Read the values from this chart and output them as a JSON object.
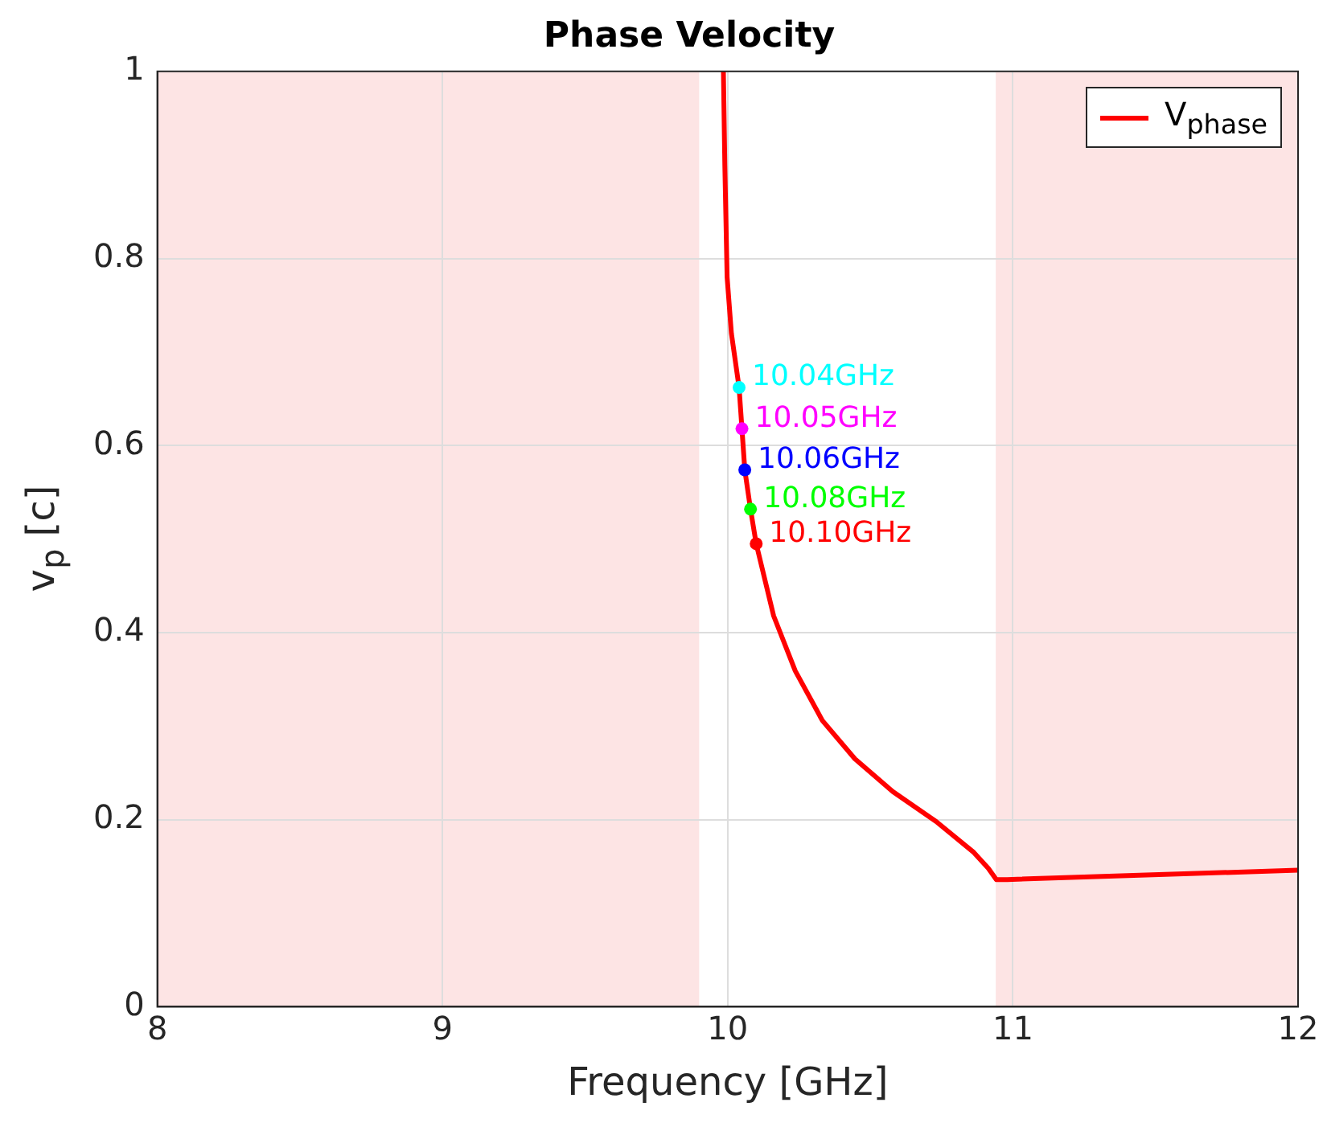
{
  "chart_data": {
    "type": "line",
    "title": "Phase Velocity",
    "xlabel": "Frequency [GHz]",
    "ylabel": "v$_{p}$ [c]",
    "xlim": [
      8,
      12
    ],
    "xticks": [
      8,
      9,
      10,
      11,
      12
    ],
    "ylim": [
      0,
      1
    ],
    "yticks": [
      0,
      0.2,
      0.4,
      0.6,
      0.8,
      1
    ],
    "grid": true,
    "legend": "top right",
    "bands": [
      {
        "axis": "x",
        "from": 8,
        "to": 9.9,
        "color": "#fde4e4"
      },
      {
        "axis": "x",
        "from": 10.94,
        "to": 12,
        "color": "#fde4e4"
      }
    ],
    "annotations": [
      {
        "text": "10.04GHz",
        "x": 10.04,
        "y": 0.662
      },
      {
        "text": "10.05GHz",
        "x": 10.05,
        "y": 0.618
      },
      {
        "text": "10.06GHz",
        "x": 10.06,
        "y": 0.574
      },
      {
        "text": "10.08GHz",
        "x": 10.08,
        "y": 0.532
      },
      {
        "text": "10.10GHz",
        "x": 10.1,
        "y": 0.495
      }
    ],
    "series": [
      {
        "name": "V$_{phase}$",
        "color": "#ff0000",
        "x": [
          9.985,
          9.99,
          9.998,
          10.013,
          10.04,
          10.05,
          10.06,
          10.08,
          10.1,
          10.161,
          10.237,
          10.332,
          10.446,
          10.579,
          10.731,
          10.863,
          10.914,
          10.942,
          10.98,
          12
        ],
        "values": [
          1,
          0.9,
          0.78,
          0.72,
          0.662,
          0.618,
          0.574,
          0.532,
          0.495,
          0.418,
          0.359,
          0.306,
          0.265,
          0.23,
          0.198,
          0.165,
          0.148,
          0.136,
          0.136,
          0.146
        ]
      },
      {
        "type": "scatter",
        "color": "#00ffff",
        "x": [
          10.04
        ],
        "values": [
          0.662
        ]
      },
      {
        "type": "scatter",
        "color": "#ff00ff",
        "x": [
          10.05
        ],
        "values": [
          0.618
        ]
      },
      {
        "type": "scatter",
        "color": "#0000ff",
        "x": [
          10.06
        ],
        "values": [
          0.574
        ]
      },
      {
        "type": "scatter",
        "color": "#00ff00",
        "x": [
          10.08
        ],
        "values": [
          0.532
        ]
      },
      {
        "type": "scatter",
        "color": "#ff0000",
        "x": [
          10.1
        ],
        "values": [
          0.495
        ]
      }
    ]
  }
}
